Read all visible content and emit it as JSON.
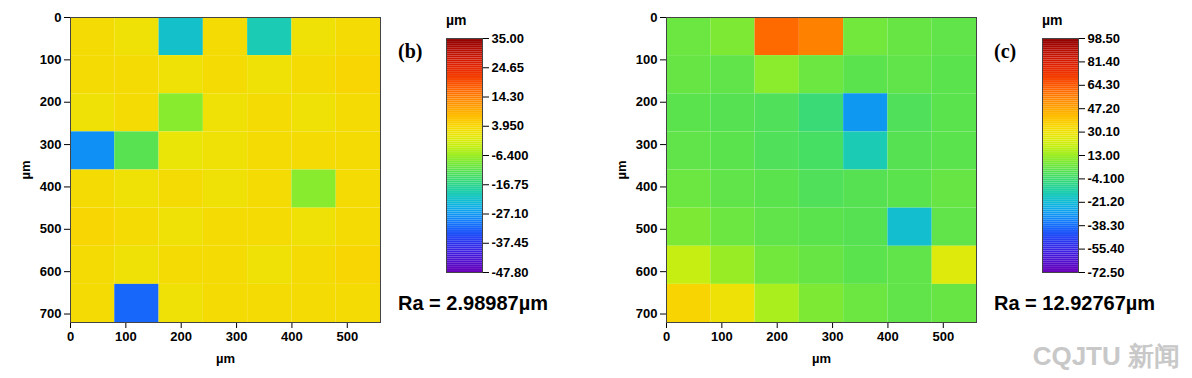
{
  "chart_data": [
    {
      "type": "heatmap",
      "title": "(b)",
      "xlabel": "µm",
      "ylabel": "µm",
      "xlim": [
        0,
        560
      ],
      "ylim": [
        0,
        720
      ],
      "xticks": [
        0,
        100,
        200,
        300,
        400,
        500
      ],
      "yticks": [
        0,
        100,
        200,
        300,
        400,
        500,
        600,
        700
      ],
      "x_edges": [
        0,
        80,
        160,
        240,
        320,
        400,
        480,
        560
      ],
      "y_edges": [
        0,
        90,
        180,
        270,
        360,
        450,
        540,
        630,
        720
      ],
      "cells": [
        [
          3,
          2,
          -22,
          3,
          -20,
          2,
          3
        ],
        [
          3,
          3,
          2,
          3,
          2,
          3,
          4
        ],
        [
          2,
          3,
          -8,
          2,
          3,
          2,
          3
        ],
        [
          -28,
          -12,
          1,
          2,
          3,
          3,
          3
        ],
        [
          3,
          2,
          3,
          2,
          3,
          -8,
          3
        ],
        [
          4,
          3,
          2,
          3,
          3,
          2,
          3
        ],
        [
          3,
          2,
          3,
          3,
          2,
          3,
          4
        ],
        [
          3,
          -32,
          2,
          3,
          3,
          3,
          3
        ]
      ],
      "colorbar": {
        "unit": "µm",
        "range": [
          -47.8,
          35.0
        ],
        "ticks": [
          {
            "value": 35.0,
            "label": "35.00"
          },
          24.65,
          {
            "value": 14.3,
            "label": "14.30"
          },
          {
            "value": 3.95,
            "label": "3.950"
          },
          {
            "value": -6.4,
            "label": "-6.400"
          },
          -16.75,
          {
            "value": -27.1,
            "label": "-27.10"
          },
          -37.45,
          {
            "value": -47.8,
            "label": "-47.80"
          }
        ]
      },
      "annotation": "Ra = 2.98987µm"
    },
    {
      "type": "heatmap",
      "title": "(c)",
      "xlabel": "µm",
      "ylabel": "µm",
      "xlim": [
        0,
        560
      ],
      "ylim": [
        0,
        720
      ],
      "xticks": [
        0,
        100,
        200,
        300,
        400,
        500
      ],
      "yticks": [
        0,
        100,
        200,
        300,
        400,
        500,
        600,
        700
      ],
      "x_edges": [
        0,
        80,
        160,
        240,
        320,
        400,
        480,
        560
      ],
      "y_edges": [
        0,
        90,
        180,
        270,
        360,
        450,
        540,
        630,
        720
      ],
      "cells": [
        [
          5,
          8,
          60,
          55,
          6,
          4,
          3
        ],
        [
          4,
          3,
          10,
          5,
          2,
          3,
          2
        ],
        [
          2,
          1,
          0,
          -5,
          -30,
          0,
          2
        ],
        [
          3,
          2,
          0,
          -2,
          -15,
          1,
          2
        ],
        [
          5,
          3,
          2,
          0,
          1,
          2,
          4
        ],
        [
          8,
          5,
          3,
          2,
          1,
          -20,
          3
        ],
        [
          20,
          12,
          6,
          4,
          2,
          3,
          25
        ],
        [
          35,
          30,
          15,
          8,
          5,
          3,
          4
        ]
      ],
      "colorbar": {
        "unit": "µm",
        "range": [
          -72.5,
          98.5
        ],
        "ticks": [
          {
            "value": 98.5,
            "label": "98.50"
          },
          {
            "value": 81.4,
            "label": "81.40"
          },
          {
            "value": 64.3,
            "label": "64.30"
          },
          {
            "value": 47.2,
            "label": "47.20"
          },
          {
            "value": 30.1,
            "label": "30.10"
          },
          {
            "value": 13.0,
            "label": "13.00"
          },
          {
            "value": -4.1,
            "label": "-4.100"
          },
          {
            "value": -21.2,
            "label": "-21.20"
          },
          {
            "value": -38.3,
            "label": "-38.30"
          },
          {
            "value": -55.4,
            "label": "-55.40"
          },
          {
            "value": -72.5,
            "label": "-72.50"
          }
        ]
      },
      "annotation": "Ra = 12.92767µm"
    }
  ],
  "watermark": "CQJTU 新闻"
}
